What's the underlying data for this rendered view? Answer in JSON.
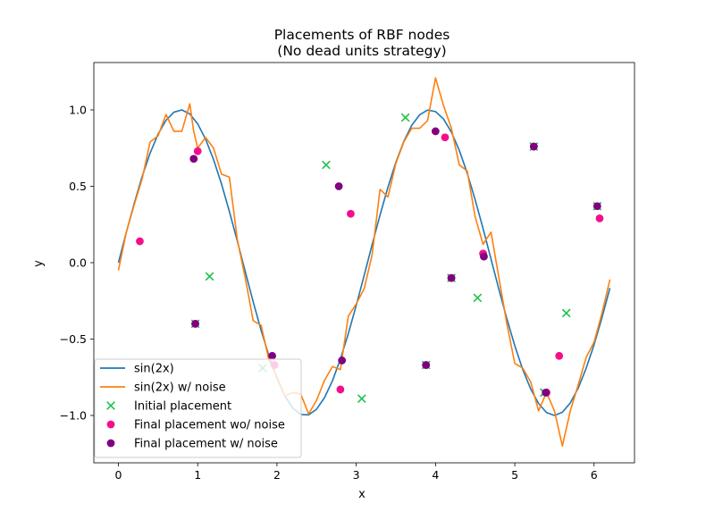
{
  "chart_data": {
    "type": "line",
    "title": "Placements of RBF nodes",
    "subtitle": "(No dead units strategy)",
    "xlabel": "x",
    "ylabel": "y",
    "xlim": [
      -0.31,
      6.51
    ],
    "ylim": [
      -1.31,
      1.31
    ],
    "xticks": [
      0,
      1,
      2,
      3,
      4,
      5,
      6
    ],
    "yticks": [
      -1.0,
      -0.5,
      0.0,
      0.5,
      1.0
    ],
    "ytick_labels": [
      "−1.0",
      "−0.5",
      "0.0",
      "0.5",
      "1.0"
    ],
    "legend_position": "lower left",
    "series": [
      {
        "name": "sin(2x)",
        "kind": "line",
        "color": "#1f77b4",
        "x": [
          0,
          0.1,
          0.2,
          0.3,
          0.4,
          0.5,
          0.6,
          0.7,
          0.8,
          0.9,
          1.0,
          1.1,
          1.2,
          1.3,
          1.4,
          1.5,
          1.6,
          1.7,
          1.8,
          1.9,
          2.0,
          2.1,
          2.2,
          2.3,
          2.4,
          2.5,
          2.6,
          2.7,
          2.8,
          2.9,
          3.0,
          3.1,
          3.2,
          3.3,
          3.4,
          3.5,
          3.6,
          3.7,
          3.8,
          3.9,
          4.0,
          4.1,
          4.2,
          4.3,
          4.4,
          4.5,
          4.6,
          4.7,
          4.8,
          4.9,
          5.0,
          5.1,
          5.2,
          5.3,
          5.4,
          5.5,
          5.6,
          5.7,
          5.8,
          5.9,
          6.0,
          6.1,
          6.2
        ],
        "y": [
          0.0,
          0.199,
          0.389,
          0.565,
          0.717,
          0.841,
          0.932,
          0.985,
          1.0,
          0.974,
          0.909,
          0.808,
          0.675,
          0.516,
          0.335,
          0.141,
          -0.058,
          -0.256,
          -0.443,
          -0.612,
          -0.757,
          -0.872,
          -0.952,
          -0.994,
          -0.996,
          -0.959,
          -0.883,
          -0.773,
          -0.631,
          -0.465,
          -0.279,
          -0.083,
          0.117,
          0.312,
          0.494,
          0.657,
          0.794,
          0.899,
          0.968,
          0.999,
          0.989,
          0.941,
          0.855,
          0.735,
          0.586,
          0.412,
          0.223,
          0.024,
          -0.176,
          -0.367,
          -0.544,
          -0.699,
          -0.826,
          -0.922,
          -0.981,
          -1.0,
          -0.979,
          -0.918,
          -0.821,
          -0.691,
          -0.537,
          -0.359,
          -0.166
        ]
      },
      {
        "name": "sin(2x) w/ noise",
        "kind": "line",
        "color": "#ff7f0e",
        "x": [
          0,
          0.1,
          0.2,
          0.3,
          0.4,
          0.5,
          0.6,
          0.7,
          0.8,
          0.9,
          0.95,
          1.0,
          1.1,
          1.2,
          1.3,
          1.4,
          1.5,
          1.6,
          1.7,
          1.8,
          1.9,
          2.0,
          2.1,
          2.2,
          2.3,
          2.4,
          2.5,
          2.6,
          2.7,
          2.8,
          2.9,
          3.0,
          3.1,
          3.2,
          3.3,
          3.4,
          3.5,
          3.6,
          3.7,
          3.8,
          3.9,
          4.0,
          4.1,
          4.2,
          4.3,
          4.4,
          4.5,
          4.6,
          4.7,
          4.8,
          4.9,
          5.0,
          5.1,
          5.2,
          5.3,
          5.4,
          5.5,
          5.6,
          5.7,
          5.8,
          5.9,
          6.0,
          6.1,
          6.2
        ],
        "y": [
          -0.05,
          0.2,
          0.38,
          0.55,
          0.79,
          0.83,
          0.97,
          0.86,
          0.86,
          1.04,
          0.86,
          0.75,
          0.82,
          0.75,
          0.58,
          0.56,
          0.15,
          -0.1,
          -0.38,
          -0.41,
          -0.64,
          -0.75,
          -0.87,
          -0.85,
          -0.86,
          -0.99,
          -0.9,
          -0.77,
          -0.68,
          -0.7,
          -0.35,
          -0.27,
          -0.17,
          0.05,
          0.48,
          0.43,
          0.65,
          0.79,
          0.88,
          0.88,
          0.93,
          1.21,
          1.03,
          0.88,
          0.64,
          0.6,
          0.3,
          0.12,
          0.2,
          -0.1,
          -0.4,
          -0.66,
          -0.69,
          -0.78,
          -0.97,
          -0.85,
          -0.97,
          -1.2,
          -0.97,
          -0.8,
          -0.62,
          -0.52,
          -0.33,
          -0.11
        ]
      },
      {
        "name": "Initial placement",
        "kind": "scatter",
        "marker": "x",
        "color": "#1ec24b",
        "x": [
          0.97,
          1.15,
          1.82,
          2.62,
          3.07,
          3.62,
          3.88,
          4.2,
          4.53,
          5.24,
          5.37,
          5.65,
          6.04
        ],
        "y": [
          -0.4,
          -0.09,
          -0.69,
          0.64,
          -0.89,
          0.95,
          -0.67,
          -0.1,
          -0.23,
          0.76,
          -0.85,
          -0.33,
          0.37
        ]
      },
      {
        "name": "Final placement wo/ noise",
        "kind": "scatter",
        "marker": "o",
        "color": "#f50e8c",
        "x": [
          0.27,
          0.97,
          1.0,
          1.97,
          2.8,
          2.93,
          3.88,
          4.12,
          4.2,
          4.6,
          5.24,
          5.4,
          5.56,
          6.07
        ],
        "y": [
          0.14,
          -0.4,
          0.73,
          -0.67,
          -0.83,
          0.32,
          -0.67,
          0.82,
          -0.1,
          0.06,
          0.76,
          -0.85,
          -0.61,
          0.29
        ]
      },
      {
        "name": "Final placement w/ noise",
        "kind": "scatter",
        "marker": "o",
        "color": "#800080",
        "x": [
          0.95,
          0.97,
          1.94,
          2.78,
          2.82,
          3.88,
          4.0,
          4.2,
          4.61,
          5.24,
          5.39,
          6.04
        ],
        "y": [
          0.68,
          -0.4,
          -0.61,
          0.5,
          -0.64,
          -0.67,
          0.86,
          -0.1,
          0.04,
          0.76,
          -0.85,
          0.37
        ]
      }
    ]
  }
}
